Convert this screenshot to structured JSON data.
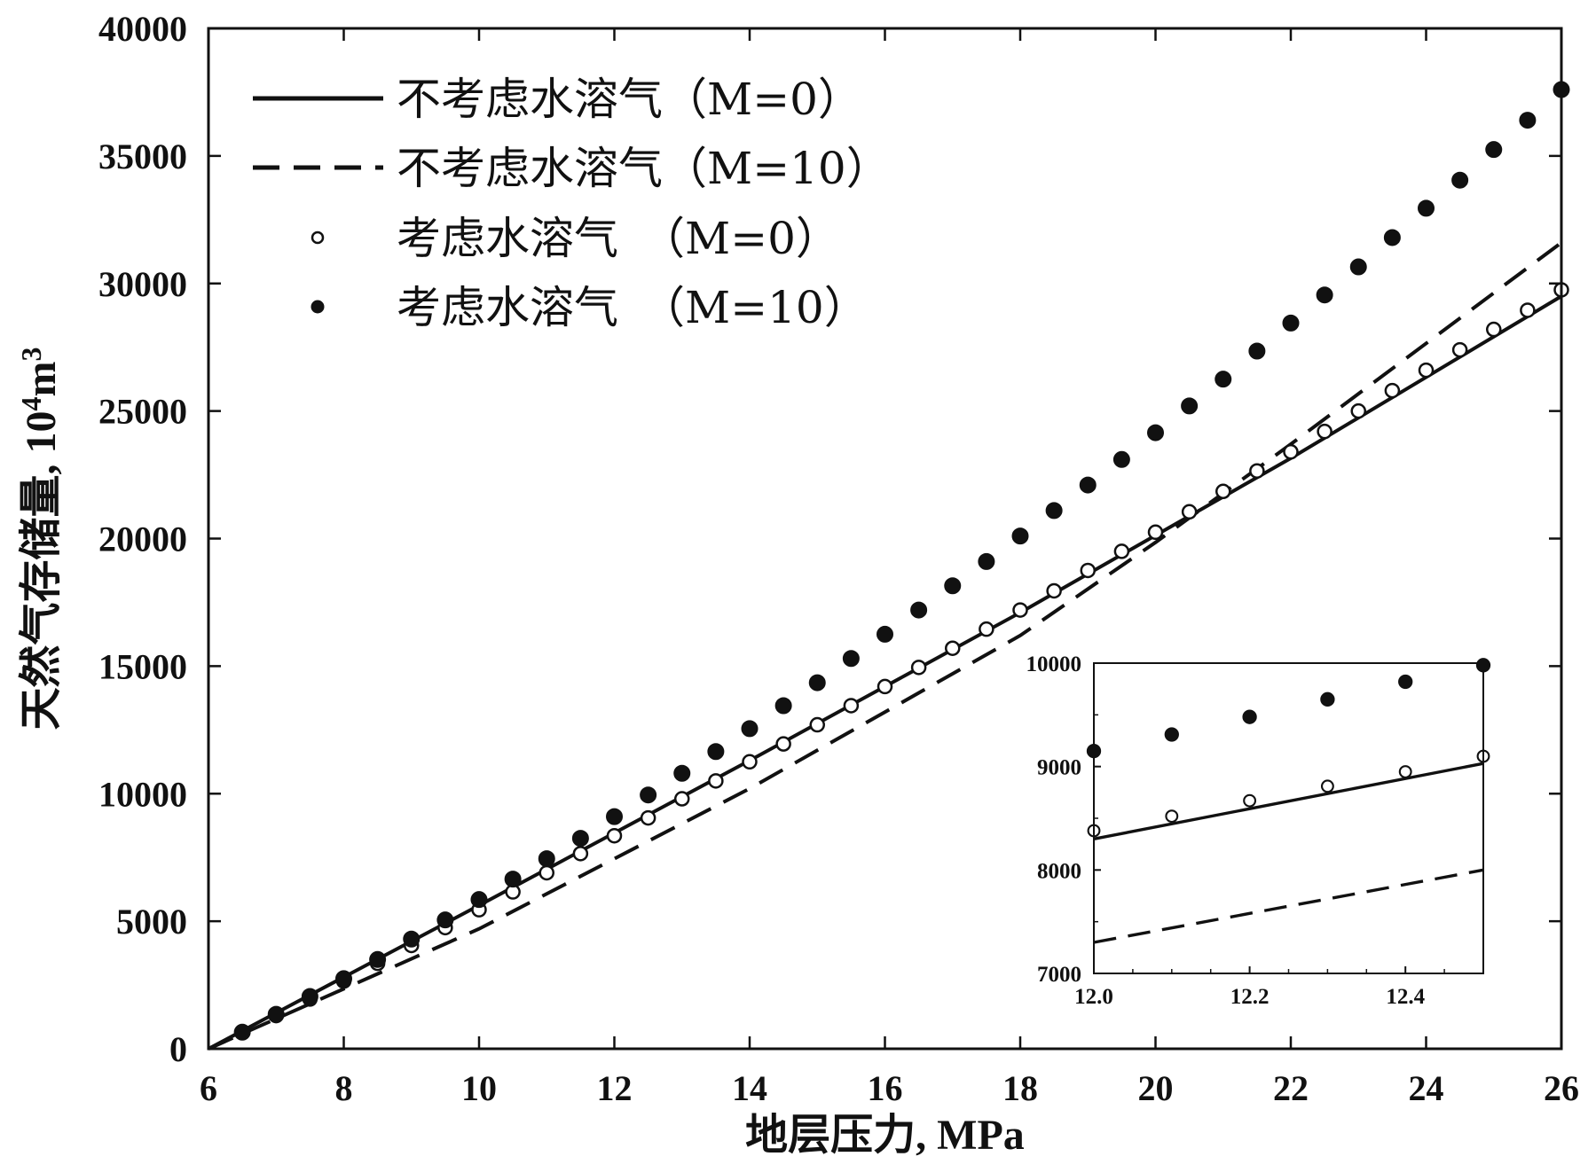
{
  "chart_data": {
    "type": "line",
    "xlabel": "地层压力, MPa",
    "ylabel_prefix": "天然气存储量, 10",
    "ylabel_sup1": "4",
    "ylabel_unit": "m",
    "ylabel_sup2": "3",
    "xlim": [
      6,
      26
    ],
    "ylim": [
      0,
      40000
    ],
    "xticks": [
      6,
      8,
      10,
      12,
      14,
      16,
      18,
      20,
      22,
      24,
      26
    ],
    "yticks": [
      0,
      5000,
      10000,
      15000,
      20000,
      25000,
      30000,
      35000,
      40000
    ],
    "xtick_labels": [
      "6",
      "8",
      "10",
      "12",
      "14",
      "16",
      "18",
      "20",
      "22",
      "24",
      "26"
    ],
    "ytick_labels": [
      "0",
      "5000",
      "10000",
      "15000",
      "20000",
      "25000",
      "30000",
      "35000",
      "40000"
    ],
    "series": [
      {
        "name": "不考虑水溶气（M=0）",
        "style": "solid-line",
        "x": [
          6,
          10,
          14,
          18,
          22,
          26
        ],
        "y": [
          0,
          5620,
          11300,
          17100,
          23150,
          29500
        ]
      },
      {
        "name": "不考虑水溶气（M=10）",
        "style": "dashed-line",
        "x": [
          6,
          10,
          14,
          18,
          20,
          22,
          26
        ],
        "y": [
          0,
          4700,
          10200,
          16200,
          19850,
          23700,
          31600
        ]
      },
      {
        "name": "考虑水溶气（M=0）",
        "style": "open-circle",
        "x": [
          6.5,
          7,
          7.5,
          8,
          8.5,
          9,
          9.5,
          10,
          10.5,
          11,
          11.5,
          12,
          12.5,
          13,
          13.5,
          14,
          14.5,
          15,
          15.5,
          16,
          16.5,
          17,
          17.5,
          18,
          18.5,
          19,
          19.5,
          20,
          20.5,
          21,
          21.5,
          22,
          22.5,
          23,
          23.5,
          24,
          24.5,
          25,
          25.5,
          26
        ],
        "y": [
          650,
          1300,
          1950,
          2650,
          3350,
          4050,
          4750,
          5450,
          6150,
          6900,
          7650,
          8350,
          9050,
          9800,
          10500,
          11250,
          11950,
          12700,
          13450,
          14200,
          14950,
          15700,
          16450,
          17200,
          17950,
          18750,
          19500,
          20250,
          21050,
          21850,
          22650,
          23400,
          24200,
          25000,
          25800,
          26600,
          27400,
          28200,
          28950,
          29750
        ]
      },
      {
        "name": "考虑水溶气（M=10）",
        "style": "filled-circle",
        "x": [
          6.5,
          7,
          7.5,
          8,
          8.5,
          9,
          9.5,
          10,
          10.5,
          11,
          11.5,
          12,
          12.5,
          13,
          13.5,
          14,
          14.5,
          15,
          15.5,
          16,
          16.5,
          17,
          17.5,
          18,
          18.5,
          19,
          19.5,
          20,
          20.5,
          21,
          21.5,
          22,
          22.5,
          23,
          23.5,
          24,
          24.5,
          25,
          25.5,
          26
        ],
        "y": [
          650,
          1350,
          2050,
          2750,
          3500,
          4300,
          5050,
          5850,
          6650,
          7450,
          8250,
          9100,
          9950,
          10800,
          11650,
          12550,
          13450,
          14350,
          15300,
          16250,
          17200,
          18150,
          19100,
          20100,
          21100,
          22100,
          23100,
          24150,
          25200,
          26250,
          27350,
          28450,
          29550,
          30650,
          31800,
          32950,
          34050,
          35250,
          36400,
          37600
        ]
      }
    ],
    "legend": [
      {
        "text": "不考虑水溶气（M=0）",
        "symbol": "solid-line"
      },
      {
        "text": "不考虑水溶气（M=10）",
        "symbol": "dashed-line"
      },
      {
        "text": "考虑水溶气　（M=0）",
        "symbol": "open-circle"
      },
      {
        "text": "考虑水溶气　（M=10）",
        "symbol": "filled-circle"
      }
    ],
    "legend_position": "top-left",
    "inset": {
      "xlim": [
        12.0,
        12.5
      ],
      "ylim": [
        7000,
        10000
      ],
      "xticks": [
        12.0,
        12.2,
        12.4
      ],
      "yticks": [
        7000,
        8000,
        9000,
        10000
      ],
      "xtick_labels": [
        "12.0",
        "12.2",
        "12.4"
      ],
      "ytick_labels": [
        "7000",
        "8000",
        "9000",
        "10000"
      ],
      "series": [
        {
          "style": "solid-line",
          "x": [
            12.0,
            12.5
          ],
          "y": [
            8300,
            9030
          ]
        },
        {
          "style": "dashed-line",
          "x": [
            12.0,
            12.5
          ],
          "y": [
            7300,
            8000
          ]
        },
        {
          "style": "open-circle",
          "x": [
            12.0,
            12.1,
            12.2,
            12.3,
            12.4,
            12.5
          ],
          "y": [
            8380,
            8520,
            8670,
            8810,
            8950,
            9100
          ]
        },
        {
          "style": "filled-circle",
          "x": [
            12.0,
            12.1,
            12.2,
            12.3,
            12.4,
            12.5
          ],
          "y": [
            9150,
            9310,
            9480,
            9650,
            9820,
            9980
          ]
        }
      ]
    }
  }
}
